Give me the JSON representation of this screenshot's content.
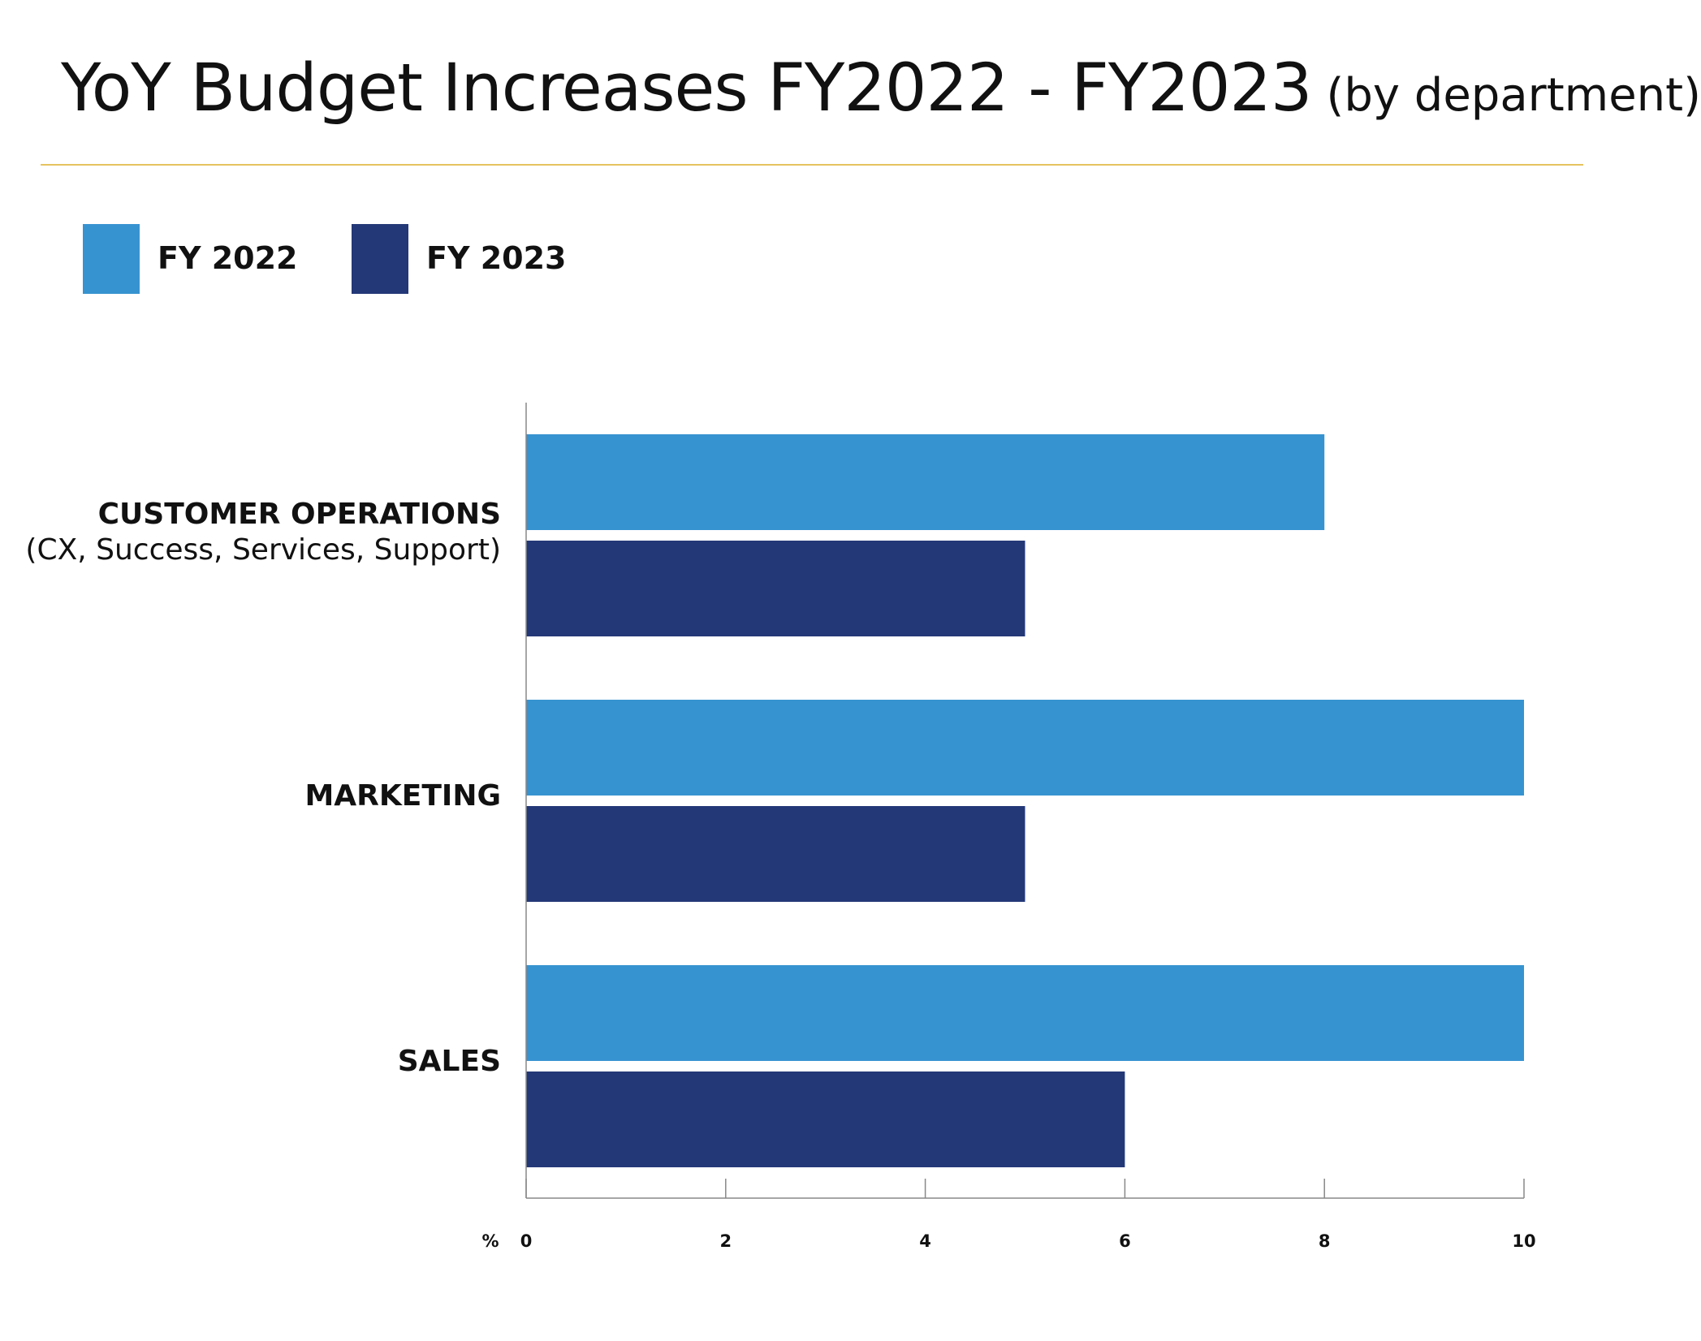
{
  "title": {
    "main": "YoY Budget Increases FY2022 - FY2023",
    "sub": "(by department)"
  },
  "legend": [
    {
      "label": "FY 2022",
      "color": "#3793d0"
    },
    {
      "label": "FY 2023",
      "color": "#233877"
    }
  ],
  "colors": {
    "accent_rule": "#e6c360",
    "axis": "#888888"
  },
  "chart_data": {
    "type": "bar",
    "orientation": "horizontal",
    "title": "YoY Budget Increases FY2022 - FY2023 (by department)",
    "categories": [
      {
        "label": "CUSTOMER OPERATIONS",
        "sublabel": "(CX, Success, Services, Support)"
      },
      {
        "label": "MARKETING",
        "sublabel": ""
      },
      {
        "label": "SALES",
        "sublabel": ""
      }
    ],
    "series": [
      {
        "name": "FY 2022",
        "values": [
          8,
          10,
          10
        ]
      },
      {
        "name": "FY 2023",
        "values": [
          5,
          5,
          6
        ]
      }
    ],
    "xlabel": "%",
    "xlim": [
      0,
      10
    ],
    "xticks": [
      "0",
      "2",
      "4",
      "6",
      "8",
      "10"
    ],
    "grid": false,
    "legend_position": "top-left"
  }
}
